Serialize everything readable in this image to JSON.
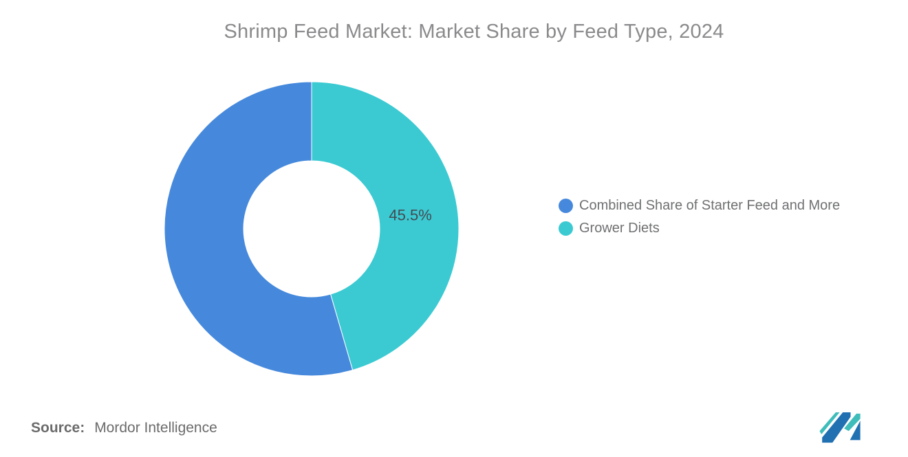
{
  "page": {
    "background_color": "#ffffff"
  },
  "chart_data": {
    "type": "pie",
    "subtype": "donut",
    "title": "Shrimp Feed Market: Market Share by Feed Type, 2024",
    "title_color": "#8a8a8c",
    "legend_position": "right",
    "start_angle_deg": 163.8,
    "outer_radius_px": 214,
    "inner_radius_px": 99,
    "data_label_color": "#454a52",
    "slices": [
      {
        "id": "combined-starter-feed-and-more",
        "name": "Combined Share of Starter Feed and More",
        "value": 54.5,
        "color": "#4689DC",
        "label": ""
      },
      {
        "id": "grower-diets",
        "name": "Grower Diets",
        "value": 45.5,
        "color": "#3BCAD2",
        "label": "45.5%"
      }
    ]
  },
  "source": {
    "prefix": "Source:",
    "text": "Mordor Intelligence"
  },
  "logo": {
    "name": "mordor-intelligence-logo",
    "blue": "#2170B2",
    "teal": "#3FBDBB"
  }
}
